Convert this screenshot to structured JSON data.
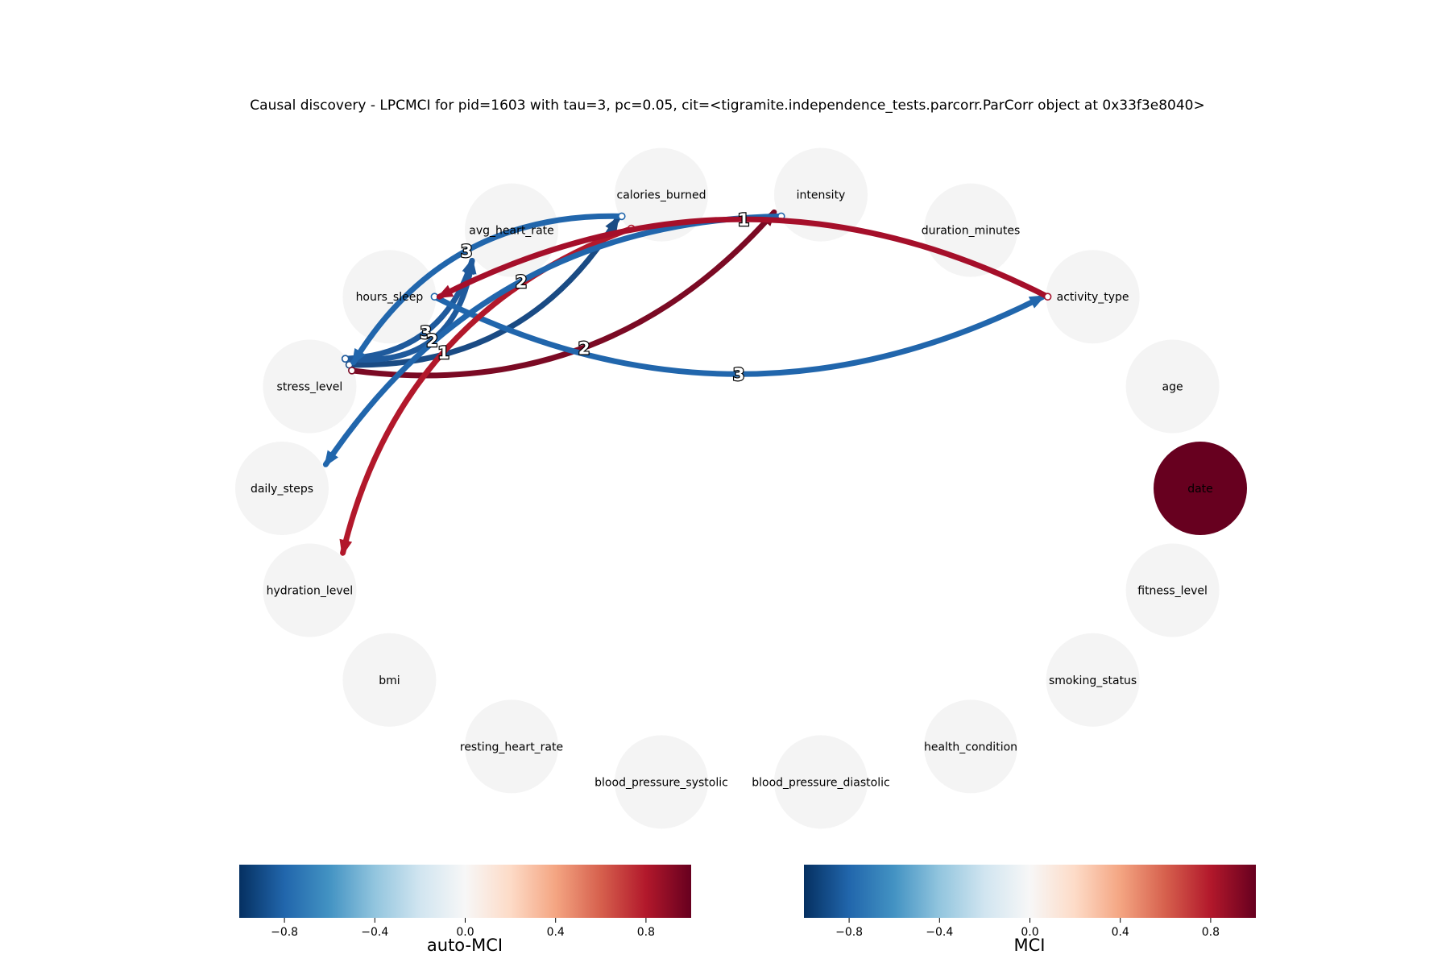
{
  "title": "Causal discovery - LPCMCI for pid=1603 with tau=3, pc=0.05, cit=<tigramite.independence_tests.parcorr.ParCorr object at 0x33f3e8040>",
  "nodes": [
    {
      "id": "calories_burned",
      "label": "calories_burned",
      "color": "#f4f4f4"
    },
    {
      "id": "intensity",
      "label": "intensity",
      "color": "#f4f4f4"
    },
    {
      "id": "duration_minutes",
      "label": "duration_minutes",
      "color": "#f4f4f4"
    },
    {
      "id": "activity_type",
      "label": "activity_type",
      "color": "#f4f4f4"
    },
    {
      "id": "age",
      "label": "age",
      "color": "#f4f4f4"
    },
    {
      "id": "date",
      "label": "date",
      "color": "#67001f"
    },
    {
      "id": "fitness_level",
      "label": "fitness_level",
      "color": "#f4f4f4"
    },
    {
      "id": "smoking_status",
      "label": "smoking_status",
      "color": "#f4f4f4"
    },
    {
      "id": "health_condition",
      "label": "health_condition",
      "color": "#f4f4f4"
    },
    {
      "id": "blood_pressure_diastolic",
      "label": "blood_pressure_diastolic",
      "color": "#f4f4f4"
    },
    {
      "id": "blood_pressure_systolic",
      "label": "blood_pressure_systolic",
      "color": "#f4f4f4"
    },
    {
      "id": "resting_heart_rate",
      "label": "resting_heart_rate",
      "color": "#f4f4f4"
    },
    {
      "id": "bmi",
      "label": "bmi",
      "color": "#f4f4f4"
    },
    {
      "id": "hydration_level",
      "label": "hydration_level",
      "color": "#f4f4f4"
    },
    {
      "id": "daily_steps",
      "label": "daily_steps",
      "color": "#f4f4f4"
    },
    {
      "id": "stress_level",
      "label": "stress_level",
      "color": "#f4f4f4"
    },
    {
      "id": "hours_sleep",
      "label": "hours_sleep",
      "color": "#f4f4f4"
    },
    {
      "id": "avg_heart_rate",
      "label": "avg_heart_rate",
      "color": "#f4f4f4"
    }
  ],
  "edges": [
    {
      "from": "stress_level",
      "to": "calories_burned",
      "lag": "",
      "color": "#1a4b84"
    },
    {
      "from": "stress_level",
      "to": "intensity",
      "lag": "2",
      "color": "#7b0a24"
    },
    {
      "from": "stress_level",
      "to": "avg_heart_rate",
      "lag": "3",
      "color": "#1f5a9c"
    },
    {
      "from": "stress_level",
      "to": "avg_heart_rate",
      "lag": "2",
      "color": "#1f5a9c"
    },
    {
      "from": "hours_sleep",
      "to": "activity_type",
      "lag": "3",
      "color": "#2166ac"
    },
    {
      "from": "calories_burned",
      "to": "stress_level",
      "lag": "3",
      "color": "#2166ac"
    },
    {
      "from": "calories_burned",
      "to": "hydration_level",
      "lag": "1",
      "color": "#b2182b"
    },
    {
      "from": "intensity",
      "to": "daily_steps",
      "lag": "2",
      "color": "#2166ac"
    },
    {
      "from": "activity_type",
      "to": "hours_sleep",
      "lag": "1",
      "color": "#a50f2a"
    }
  ],
  "colorbars": [
    {
      "label": "auto-MCI",
      "ticks": [
        "−0.8",
        "−0.4",
        "0.0",
        "0.4",
        "0.8"
      ],
      "tick_values": [
        -0.8,
        -0.4,
        0.0,
        0.4,
        0.8
      ],
      "range": [
        -1,
        1
      ]
    },
    {
      "label": "MCI",
      "ticks": [
        "−0.8",
        "−0.4",
        "0.0",
        "0.4",
        "0.8"
      ],
      "tick_values": [
        -0.8,
        -0.4,
        0.0,
        0.4,
        0.8
      ],
      "range": [
        -1,
        1
      ]
    }
  ],
  "colormap": [
    "#053061",
    "#2166ac",
    "#4393c3",
    "#92c5de",
    "#d1e5f0",
    "#f7f7f7",
    "#fddbc7",
    "#f4a582",
    "#d6604d",
    "#b2182b",
    "#67001f"
  ]
}
